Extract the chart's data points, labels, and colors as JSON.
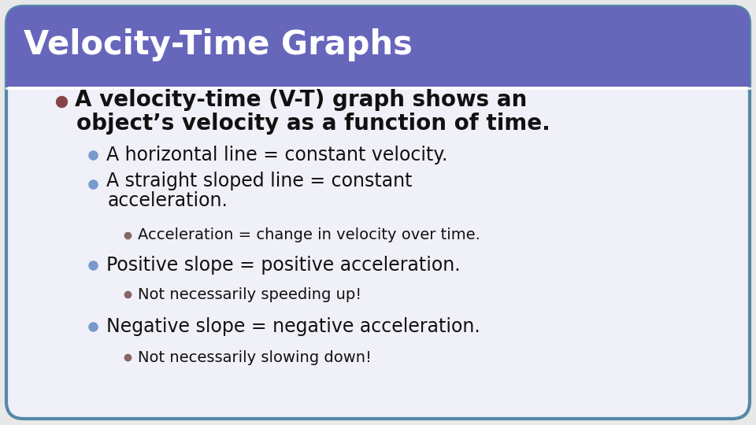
{
  "title": "Velocity-Time Graphs",
  "title_bg_color": "#6666bb",
  "title_text_color": "#ffffff",
  "slide_bg_color": "#f0f0f8",
  "slide_border_color": "#5588aa",
  "content": [
    {
      "level": 1,
      "bullet_color": "#884444",
      "text_line1": "A velocity-time (V-T) graph shows an",
      "text_line2": "object’s velocity as a function of time.",
      "fontsize": 20,
      "bold": true
    },
    {
      "level": 2,
      "bullet_color": "#7799cc",
      "text_line1": "A horizontal line = constant velocity.",
      "text_line2": null,
      "fontsize": 17,
      "bold": false
    },
    {
      "level": 2,
      "bullet_color": "#7799cc",
      "text_line1": "A straight sloped line = constant",
      "text_line2": "acceleration.",
      "fontsize": 17,
      "bold": false
    },
    {
      "level": 3,
      "bullet_color": "#886666",
      "text_line1": "Acceleration = change in velocity over time.",
      "text_line2": null,
      "fontsize": 14,
      "bold": false
    },
    {
      "level": 2,
      "bullet_color": "#7799cc",
      "text_line1": "Positive slope = positive acceleration.",
      "text_line2": null,
      "fontsize": 17,
      "bold": false
    },
    {
      "level": 3,
      "bullet_color": "#886666",
      "text_line1": "Not necessarily speeding up!",
      "text_line2": null,
      "fontsize": 14,
      "bold": false
    },
    {
      "level": 2,
      "bullet_color": "#7799cc",
      "text_line1": "Negative slope = negative acceleration.",
      "text_line2": null,
      "fontsize": 17,
      "bold": false
    },
    {
      "level": 3,
      "bullet_color": "#886666",
      "text_line1": "Not necessarily slowing down!",
      "text_line2": null,
      "fontsize": 14,
      "bold": false
    }
  ]
}
